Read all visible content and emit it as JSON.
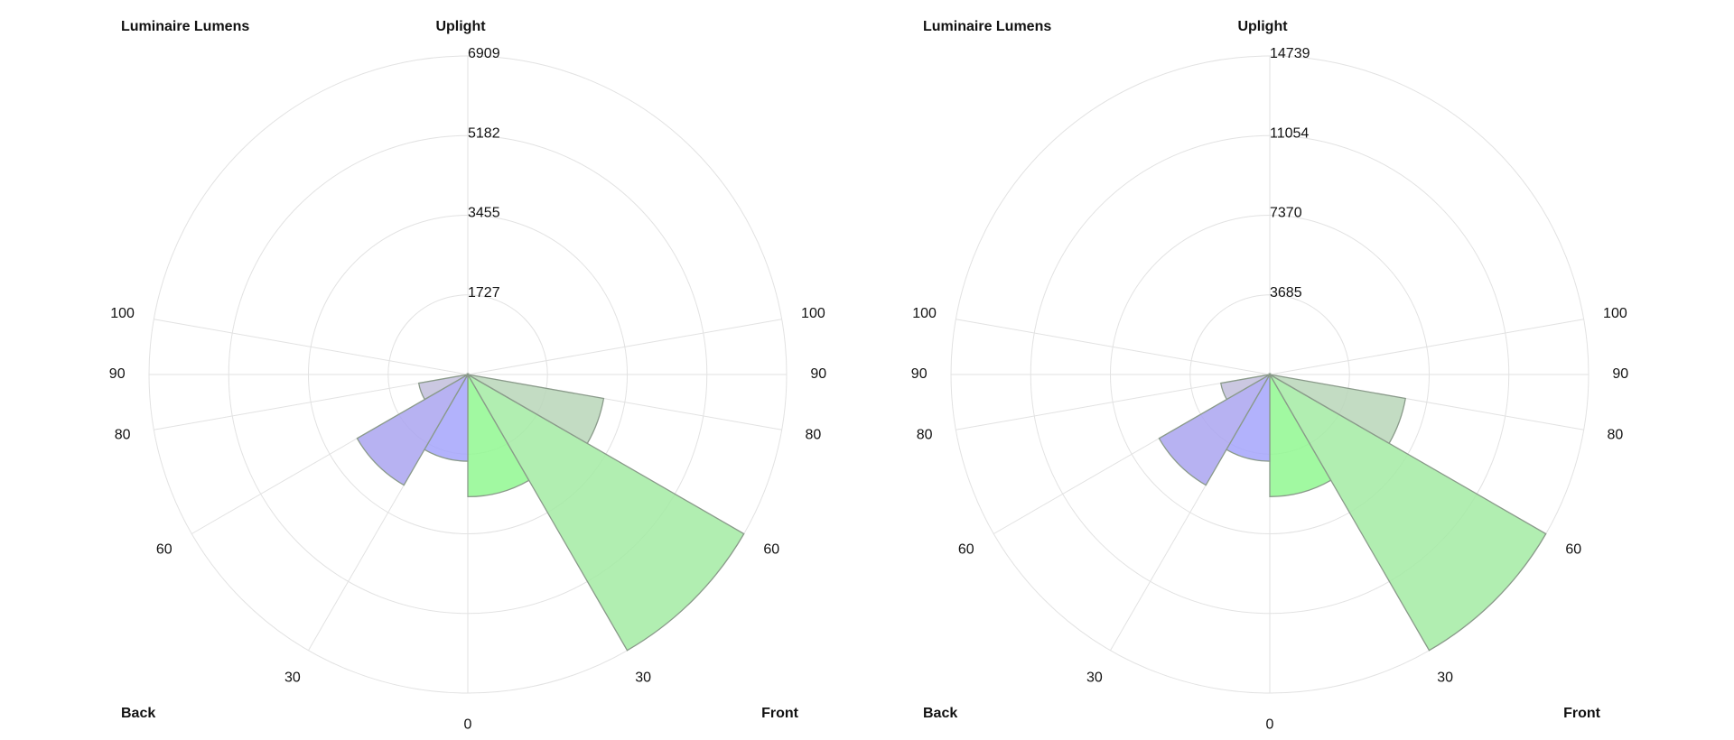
{
  "chart_data": [
    {
      "type": "polar",
      "title": "Luminaire Lumens",
      "top_label": "Uplight",
      "left_label": "Back",
      "right_label": "Front",
      "rlim": [
        0,
        6909
      ],
      "rticks": [
        1727,
        3455,
        5182,
        6909
      ],
      "thetaticks": [
        0,
        30,
        60,
        80,
        90,
        100
      ],
      "front": {
        "bins": [
          0,
          30,
          60,
          80
        ],
        "values": [
          2650,
          6909,
          2990
        ],
        "colors": [
          "#90f890",
          "#a3eba3",
          "#b9d6b9"
        ]
      },
      "back": {
        "bins": [
          0,
          30,
          60,
          80
        ],
        "values": [
          1880,
          2770,
          1080
        ],
        "colors": [
          "#a4a4fb",
          "#aaa5f0",
          "#c2bedc"
        ]
      }
    },
    {
      "type": "polar",
      "title": "Luminaire Lumens",
      "top_label": "Uplight",
      "left_label": "Back",
      "right_label": "Front",
      "rlim": [
        0,
        14739
      ],
      "rticks": [
        3685,
        7370,
        11054,
        14739
      ],
      "thetaticks": [
        0,
        30,
        60,
        80,
        90,
        100
      ],
      "front": {
        "bins": [
          0,
          30,
          60,
          80
        ],
        "values": [
          5650,
          14739,
          6370
        ],
        "colors": [
          "#90f890",
          "#a3eba3",
          "#b9d6b9"
        ]
      },
      "back": {
        "bins": [
          0,
          30,
          60,
          80
        ],
        "values": [
          4010,
          5910,
          2300
        ],
        "colors": [
          "#a4a4fb",
          "#aaa5f0",
          "#c2bedc"
        ]
      }
    }
  ]
}
